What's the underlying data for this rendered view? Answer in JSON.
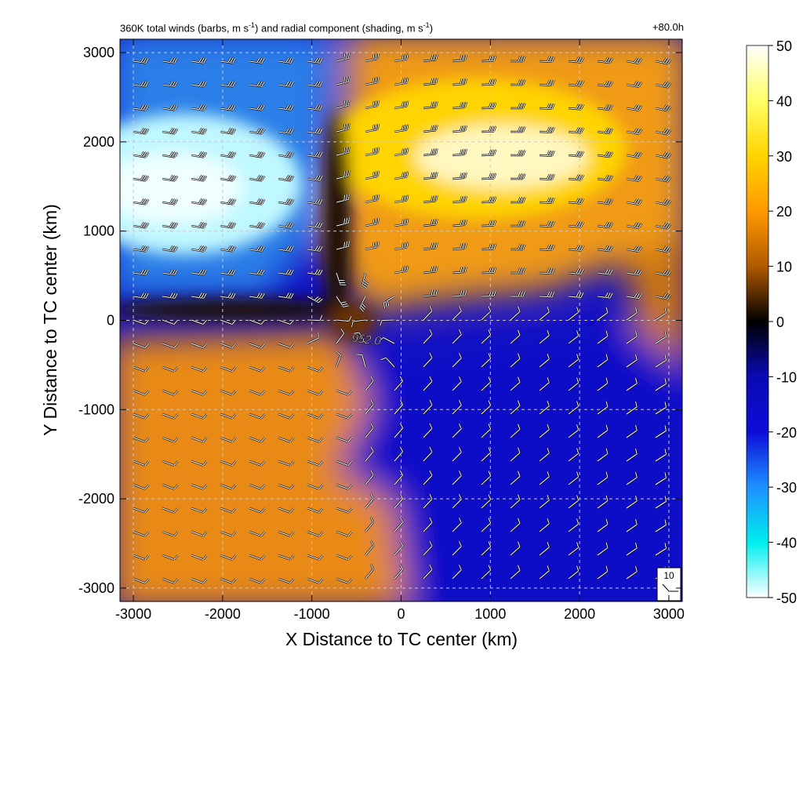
{
  "chart_data": {
    "type": "heatmap",
    "title": {
      "part1": "360K total winds (barbs, m s",
      "sup1": "-1",
      "part2": ") and radial component (shading, m s",
      "sup2": "-1",
      "part3": ")"
    },
    "time_label": "+80.0h",
    "xlabel": "X Distance to TC center (km)",
    "ylabel": "Y Distance to TC center (km)",
    "xlim": [
      -3150,
      3150
    ],
    "ylim": [
      -3150,
      3150
    ],
    "xticks": [
      -3000,
      -2000,
      -1000,
      0,
      1000,
      2000,
      3000
    ],
    "yticks": [
      -3000,
      -2000,
      -1000,
      0,
      1000,
      2000,
      3000
    ],
    "grid": true,
    "center_marker_label": "952.0",
    "barb_reference_label": "10",
    "colorbar": {
      "min": -50,
      "max": 50,
      "ticks": [
        50,
        40,
        30,
        20,
        10,
        0,
        -10,
        -20,
        -30,
        -40,
        -50
      ],
      "colors": [
        "#ffffff",
        "#ffff66",
        "#ffd400",
        "#ff9900",
        "#b05a00",
        "#000000",
        "#0a0ab4",
        "#0d0dd8",
        "#1e90ff",
        "#00eeee",
        "#ffffff"
      ]
    },
    "shading_regions": [
      {
        "name": "upper-left inflow",
        "sign": "negative",
        "x_range": [
          -3150,
          -700
        ],
        "y_range": [
          300,
          3150
        ],
        "peak_value": -45
      },
      {
        "name": "upper-right outflow",
        "sign": "positive",
        "x_range": [
          -700,
          3150
        ],
        "y_range": [
          200,
          3150
        ],
        "peak_value": 48
      },
      {
        "name": "lower-left outflow",
        "sign": "positive",
        "x_range": [
          -3150,
          -500
        ],
        "y_range": [
          -3150,
          0
        ],
        "peak_value": 18
      },
      {
        "name": "lower-right inflow",
        "sign": "negative",
        "x_range": [
          -500,
          3150
        ],
        "y_range": [
          -3150,
          200
        ],
        "peak_value": -15
      }
    ]
  }
}
